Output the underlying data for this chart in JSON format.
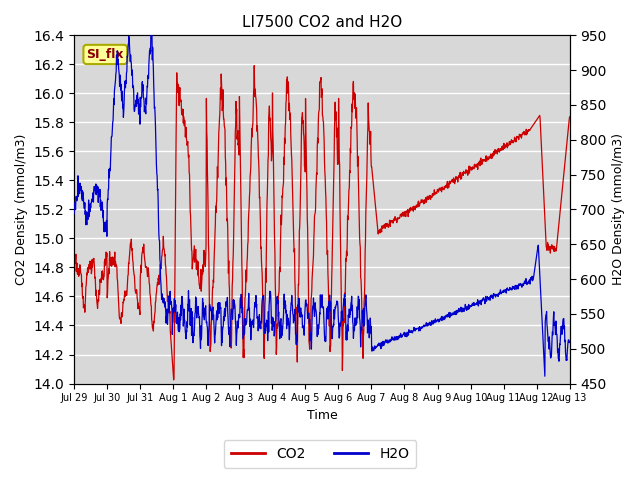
{
  "title": "LI7500 CO2 and H2O",
  "xlabel": "Time",
  "ylabel_left": "CO2 Density (mmol/m3)",
  "ylabel_right": "H2O Density (mmol/m3)",
  "ylim_left": [
    14.0,
    16.4
  ],
  "ylim_right": [
    450,
    950
  ],
  "background_color": "#ffffff",
  "plot_bg_color": "#d8d8d8",
  "grid_color": "#ffffff",
  "co2_color": "#cc0000",
  "h2o_color": "#0000cc",
  "annotation_text": "SI_flx",
  "annotation_bg": "#ffff99",
  "annotation_border": "#aaaa00",
  "x_tick_labels": [
    "Jul 29",
    "Jul 30",
    "Jul 31",
    "Aug 1",
    "Aug 2",
    "Aug 3",
    "Aug 4",
    "Aug 5",
    "Aug 6",
    "Aug 7",
    "Aug 8",
    "Aug 9",
    "Aug 10",
    "Aug 11",
    "Aug 12",
    "Aug 13"
  ],
  "x_tick_positions": [
    0,
    1,
    2,
    3,
    4,
    5,
    6,
    7,
    8,
    9,
    10,
    11,
    12,
    13,
    14,
    15
  ],
  "left_yticks": [
    14.0,
    14.2,
    14.4,
    14.6,
    14.8,
    15.0,
    15.2,
    15.4,
    15.6,
    15.8,
    16.0,
    16.2,
    16.4
  ],
  "right_yticks": [
    450,
    500,
    550,
    600,
    650,
    700,
    750,
    800,
    850,
    900,
    950
  ]
}
